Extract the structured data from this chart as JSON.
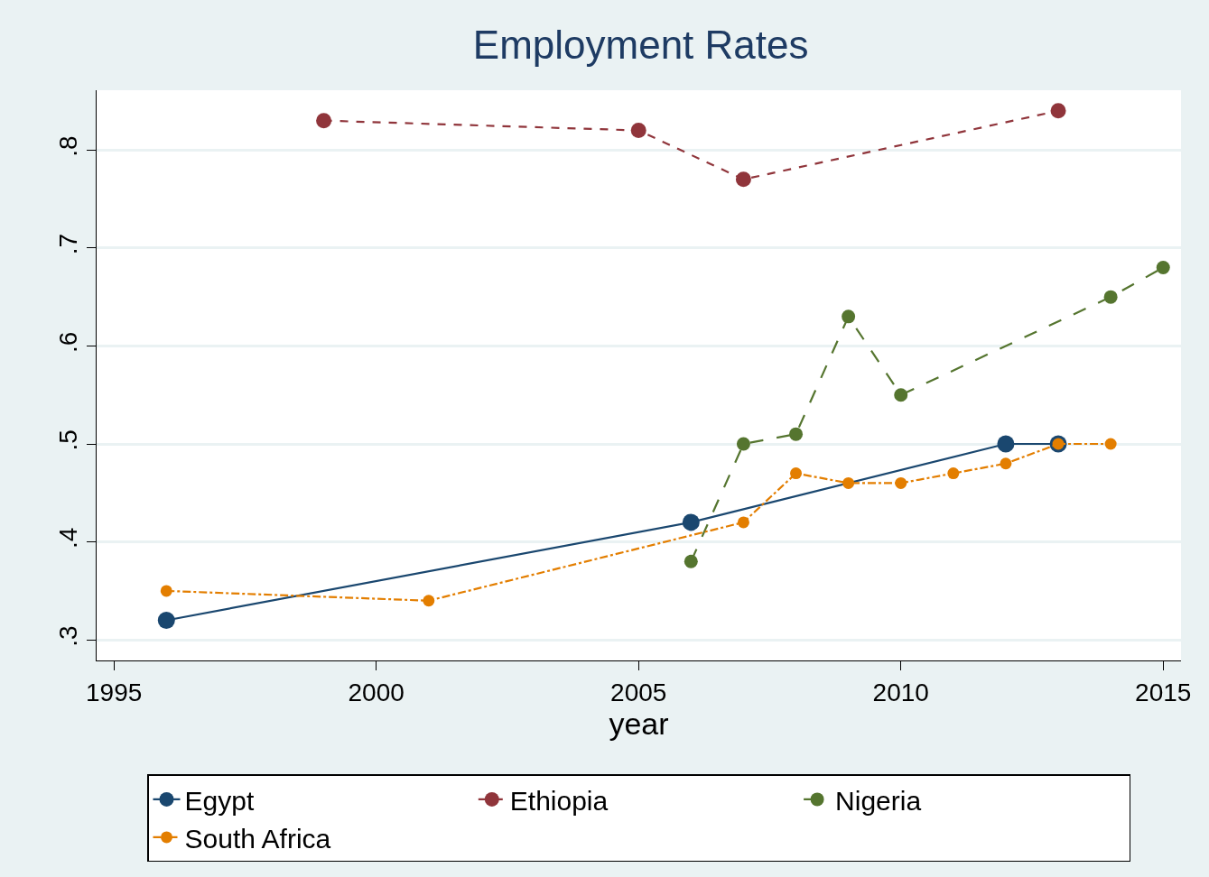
{
  "chart_data": {
    "type": "line",
    "title": "Employment Rates",
    "xlabel": "year",
    "xlim": [
      1994.67,
      2015.34
    ],
    "xticks": [
      1995,
      2000,
      2005,
      2010,
      2015
    ],
    "ylim": [
      0.279,
      0.861
    ],
    "yticks": [
      {
        "value": 0.3,
        "label": ".3"
      },
      {
        "value": 0.4,
        "label": ".4"
      },
      {
        "value": 0.5,
        "label": ".5"
      },
      {
        "value": 0.6,
        "label": ".6"
      },
      {
        "value": 0.7,
        "label": ".7"
      },
      {
        "value": 0.8,
        "label": ".8"
      }
    ],
    "grid": "y",
    "legend": "bottom",
    "marker": "circle",
    "series": [
      {
        "name": "Egypt",
        "color": "#1a476f",
        "line_style": "solid",
        "x": [
          1996,
          2006,
          2012,
          2013
        ],
        "values": [
          0.32,
          0.42,
          0.5,
          0.5
        ]
      },
      {
        "name": "Ethiopia",
        "color": "#90353b",
        "line_style": "dashed",
        "x": [
          1999,
          2005,
          2007,
          2013
        ],
        "values": [
          0.83,
          0.82,
          0.77,
          0.84
        ]
      },
      {
        "name": "Nigeria",
        "color": "#55752f",
        "line_style": "longdash",
        "x": [
          2006,
          2007,
          2008,
          2009,
          2010,
          2014,
          2015
        ],
        "values": [
          0.38,
          0.5,
          0.51,
          0.63,
          0.55,
          0.65,
          0.68
        ]
      },
      {
        "name": "South Africa",
        "color": "#e37e00",
        "line_style": "dashdot",
        "x": [
          1996,
          2001,
          2007,
          2008,
          2009,
          2010,
          2011,
          2012,
          2013,
          2014
        ],
        "values": [
          0.35,
          0.34,
          0.42,
          0.47,
          0.46,
          0.46,
          0.47,
          0.48,
          0.5,
          0.5
        ]
      }
    ]
  }
}
